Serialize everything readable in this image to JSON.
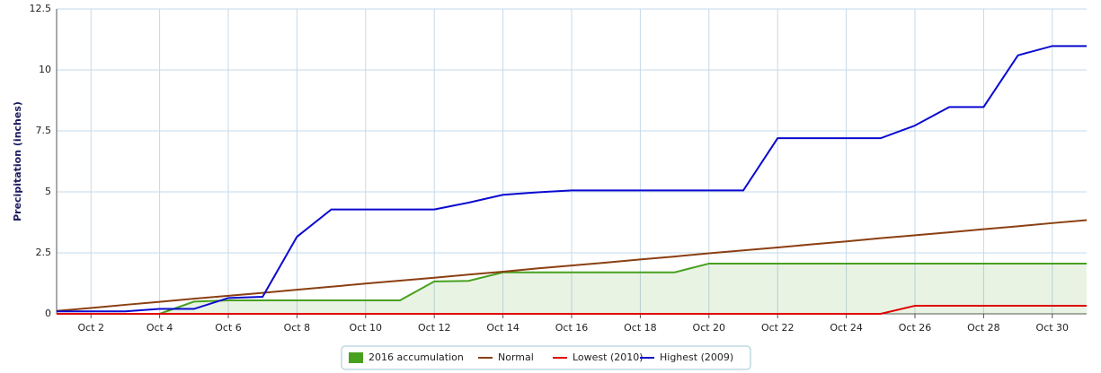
{
  "chart_data": {
    "type": "line",
    "y_label": "Precipitation (inches)",
    "categories": [
      null,
      "Oct 2",
      null,
      "Oct 4",
      null,
      "Oct 6",
      null,
      "Oct 8",
      null,
      "Oct 10",
      null,
      "Oct 12",
      null,
      "Oct 14",
      null,
      "Oct 16",
      null,
      "Oct 18",
      null,
      "Oct 20",
      null,
      "Oct 22",
      null,
      "Oct 24",
      null,
      "Oct 26",
      null,
      "Oct 28",
      null,
      "Oct 30",
      null
    ],
    "ylim": [
      0,
      12.5
    ],
    "yticks": [
      0,
      2.5,
      5,
      7.5,
      10,
      12.5
    ],
    "grid": true,
    "series": [
      {
        "name": "2016 accumulation",
        "color": "#48a01f",
        "type": "area",
        "values": [
          0,
          0,
          0,
          0,
          0.5,
          0.55,
          0.55,
          0.55,
          0.55,
          0.55,
          0.55,
          1.33,
          1.35,
          1.7,
          1.7,
          1.7,
          1.7,
          1.7,
          1.7,
          2.06,
          2.06,
          2.06,
          2.06,
          2.06,
          2.06,
          2.06,
          2.06,
          2.06,
          2.06,
          2.06,
          2.06
        ]
      },
      {
        "name": "Normal",
        "color": "#8b3f12",
        "values": [
          0.12,
          0.24,
          0.37,
          0.49,
          0.62,
          0.74,
          0.86,
          0.99,
          1.11,
          1.24,
          1.36,
          1.48,
          1.61,
          1.73,
          1.86,
          1.98,
          2.1,
          2.23,
          2.35,
          2.48,
          2.6,
          2.72,
          2.85,
          2.97,
          3.1,
          3.22,
          3.34,
          3.47,
          3.59,
          3.72,
          3.84
        ]
      },
      {
        "name": "Lowest (2010)",
        "color": "#e00000",
        "values": [
          0,
          0,
          0,
          0,
          0,
          0,
          0,
          0,
          0,
          0,
          0,
          0,
          0,
          0,
          0,
          0,
          0,
          0,
          0,
          0,
          0,
          0,
          0,
          0,
          0,
          0.33,
          0.33,
          0.33,
          0.33,
          0.33,
          0.33
        ]
      },
      {
        "name": "Highest (2009)",
        "color": "#0a0ad0",
        "values": [
          0.1,
          0.1,
          0.1,
          0.2,
          0.2,
          0.65,
          0.7,
          3.16,
          4.28,
          4.28,
          4.28,
          4.28,
          4.56,
          4.88,
          4.98,
          5.06,
          5.06,
          5.06,
          5.06,
          5.06,
          5.06,
          7.2,
          7.2,
          7.2,
          7.2,
          7.72,
          8.48,
          8.48,
          10.6,
          10.98,
          10.98
        ]
      }
    ]
  }
}
